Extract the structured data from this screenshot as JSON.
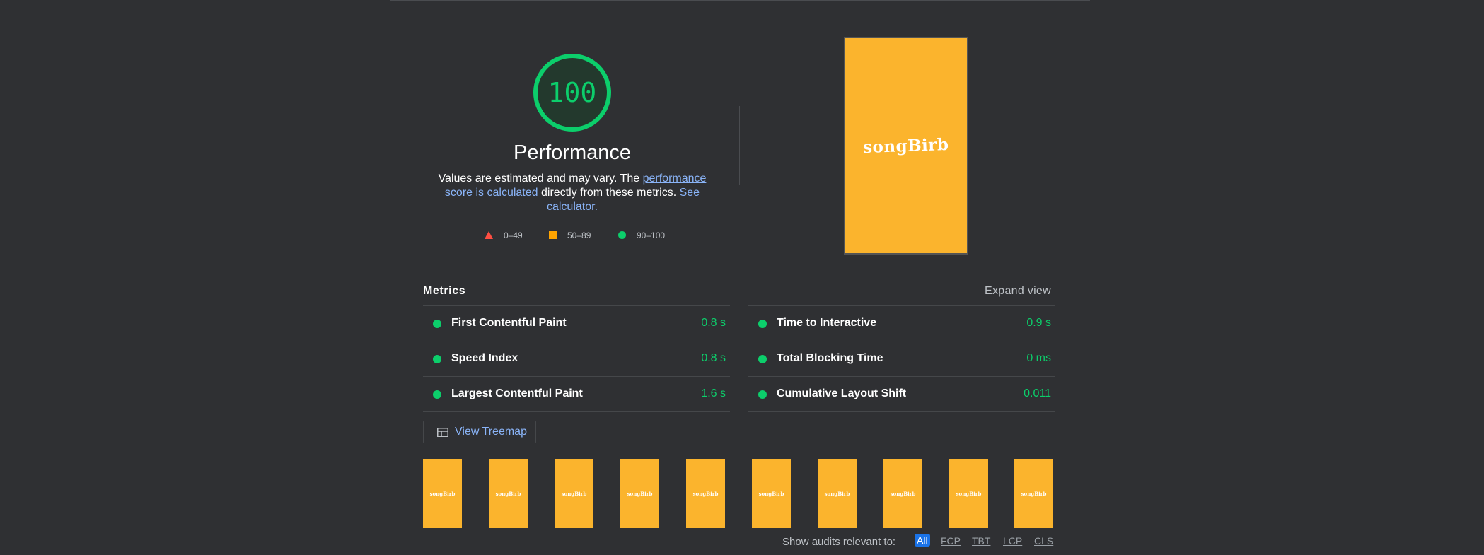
{
  "score": {
    "value": "100",
    "title": "Performance",
    "color": "#0cce6b",
    "description": {
      "prefix": "Values are estimated and may vary. The ",
      "link1": "performance score is calculated",
      "middle": " directly from these metrics. ",
      "link2": "See calculator."
    }
  },
  "legend": [
    {
      "shape": "triangle",
      "label": "0–49",
      "color": "#ff4e42"
    },
    {
      "shape": "square",
      "label": "50–89",
      "color": "#ffa400"
    },
    {
      "shape": "circle",
      "label": "90–100",
      "color": "#0cce6b"
    }
  ],
  "final_screenshot": {
    "brand": "songBirb"
  },
  "metrics": {
    "title": "Metrics",
    "expand_label": "Expand view",
    "left": [
      {
        "name": "First Contentful Paint",
        "value": "0.8 s"
      },
      {
        "name": "Speed Index",
        "value": "0.8 s"
      },
      {
        "name": "Largest Contentful Paint",
        "value": "1.6 s"
      }
    ],
    "right": [
      {
        "name": "Time to Interactive",
        "value": "0.9 s"
      },
      {
        "name": "Total Blocking Time",
        "value": "0 ms"
      },
      {
        "name": "Cumulative Layout Shift",
        "value": "0.011"
      }
    ]
  },
  "treemap": {
    "label": "View Treemap",
    "icon": "treemap-icon"
  },
  "filmstrip": {
    "brand": "songBirb",
    "count": 10
  },
  "audit_filter": {
    "label": "Show audits relevant to:",
    "options": [
      "All",
      "FCP",
      "TBT",
      "LCP",
      "CLS"
    ],
    "selected": "All"
  }
}
